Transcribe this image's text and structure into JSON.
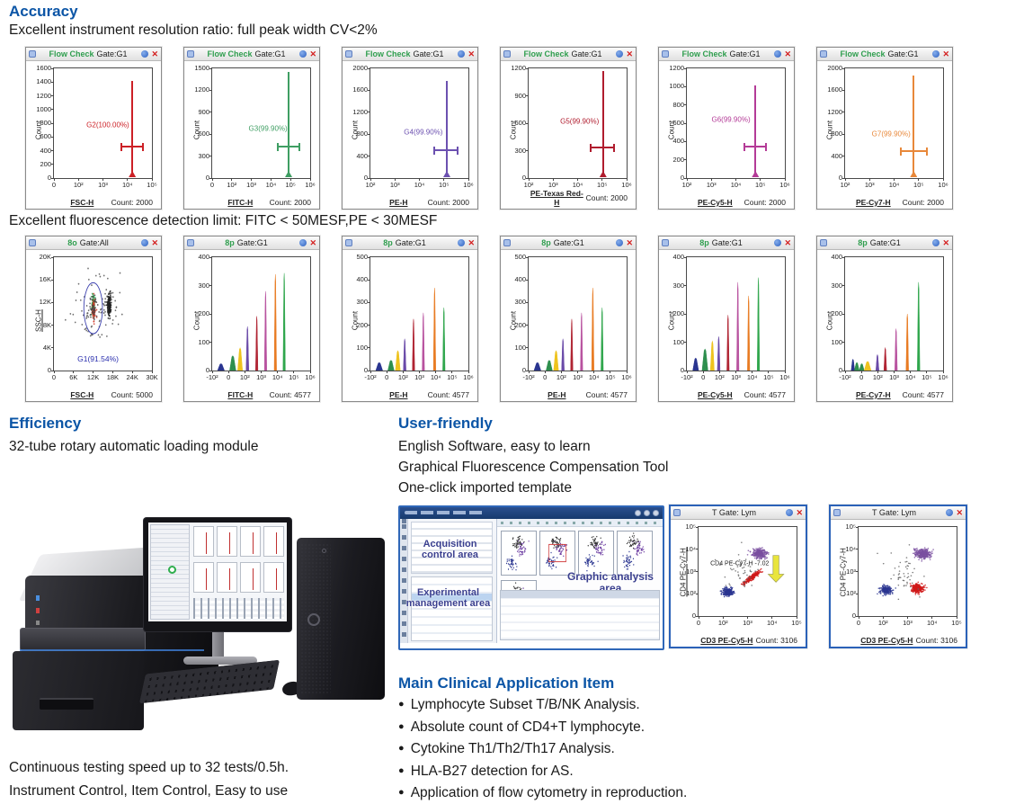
{
  "page": {
    "accuracy_heading": "Accuracy",
    "accuracy_line": "Excellent instrument resolution ratio: full peak width CV<2%",
    "fluorescence_line": "Excellent fluorescence detection limit: FITC < 50MESF,PE < 30MESF",
    "efficiency_heading": "Efficiency",
    "efficiency_line": "32-tube rotary automatic loading module",
    "userfriendly_heading": "User-friendly",
    "userfriendly_lines": [
      "English Software, easy to learn",
      "Graphical Fluorescence Compensation Tool",
      "One-click imported template"
    ],
    "clinical_heading": "Main Clinical Application Item",
    "clinical_items": [
      "Lymphocyte Subset T/B/NK Analysis.",
      "Absolute count of CD4+T lymphocyte.",
      "Cytokine Th1/Th2/Th17 Analysis.",
      "HLA-B27 detection for AS.",
      "Application of flow cytometry in reproduction."
    ],
    "footer_lines": [
      "Continuous testing speed up to 32 tests/0.5h.",
      "Instrument Control, Item Control, Easy to use"
    ]
  },
  "icons": {
    "close": "✕"
  },
  "software": {
    "acquisition_label": "Acquisition control area",
    "graphic_label": "Graphic analysis area",
    "experimental_label": "Experimental management area"
  },
  "chart_data": {
    "row1": [
      {
        "type": "single",
        "title_app": "Flow Check",
        "title_gate": "Gate:G1",
        "ylabel": "Count",
        "xlabel": "FSC-H",
        "count_label": "Count: 2000",
        "yticks": [
          "1600",
          "1400",
          "1200",
          "1000",
          "800",
          "600",
          "400",
          "200",
          "0"
        ],
        "xticks": [
          "0",
          "10²",
          "10³",
          "10⁴",
          "10⁵"
        ],
        "gate_label": "G2(100.00%)",
        "color": "#cc2026",
        "peak": {
          "x": 0.8,
          "h": 0.88
        },
        "whisker": {
          "x1": 0.68,
          "x2": 0.92,
          "y": 0.28
        },
        "label_pos": {
          "x": 0.55,
          "y": 0.48
        }
      },
      {
        "type": "single",
        "title_app": "Flow Check",
        "title_gate": "Gate:G1",
        "ylabel": "Count",
        "xlabel": "FITC-H",
        "count_label": "Count: 2000",
        "yticks": [
          "1500",
          "1200",
          "900",
          "600",
          "300",
          "0"
        ],
        "xticks": [
          "0",
          "10²",
          "10³",
          "10⁴",
          "10⁵",
          "10⁶"
        ],
        "gate_label": "G3(99.90%)",
        "color": "#3f9e63",
        "peak": {
          "x": 0.78,
          "h": 0.96
        },
        "whisker": {
          "x1": 0.66,
          "x2": 0.9,
          "y": 0.28
        },
        "label_pos": {
          "x": 0.57,
          "y": 0.45
        }
      },
      {
        "type": "single",
        "title_app": "Flow Check",
        "title_gate": "Gate:G1",
        "ylabel": "Count",
        "xlabel": "PE-H",
        "count_label": "Count: 2000",
        "yticks": [
          "2000",
          "1600",
          "1200",
          "800",
          "400",
          "0"
        ],
        "xticks": [
          "10²",
          "10³",
          "10⁴",
          "10⁵",
          "10⁶"
        ],
        "gate_label": "G4(99.90%)",
        "color": "#6c51b0",
        "peak": {
          "x": 0.78,
          "h": 0.88
        },
        "whisker": {
          "x1": 0.64,
          "x2": 0.9,
          "y": 0.25
        },
        "label_pos": {
          "x": 0.54,
          "y": 0.42
        }
      },
      {
        "type": "single",
        "title_app": "Flow Check",
        "title_gate": "Gate:G1",
        "ylabel": "Count",
        "xlabel": "PE-Texas Red-H",
        "count_label": "Count: 2000",
        "yticks": [
          "1200",
          "900",
          "600",
          "300",
          "0"
        ],
        "xticks": [
          "10²",
          "10³",
          "10⁴",
          "10⁵",
          "10⁶"
        ],
        "gate_label": "G5(99.90%)",
        "color": "#b01c2e",
        "peak": {
          "x": 0.76,
          "h": 0.97
        },
        "whisker": {
          "x1": 0.62,
          "x2": 0.88,
          "y": 0.27
        },
        "label_pos": {
          "x": 0.52,
          "y": 0.52
        }
      },
      {
        "type": "single",
        "title_app": "Flow Check",
        "title_gate": "Gate:G1",
        "ylabel": "Count",
        "xlabel": "PE-Cy5-H",
        "count_label": "Count: 2000",
        "yticks": [
          "1200",
          "1000",
          "800",
          "600",
          "400",
          "200",
          "0"
        ],
        "xticks": [
          "10²",
          "10³",
          "10⁴",
          "10⁵",
          "10⁶"
        ],
        "gate_label": "G6(99.90%)",
        "color": "#b43b97",
        "peak": {
          "x": 0.7,
          "h": 0.84
        },
        "whisker": {
          "x1": 0.58,
          "x2": 0.82,
          "y": 0.28
        },
        "label_pos": {
          "x": 0.45,
          "y": 0.53
        }
      },
      {
        "type": "single",
        "title_app": "Flow Check",
        "title_gate": "Gate:G1",
        "ylabel": "Count",
        "xlabel": "PE-Cy7-H",
        "count_label": "Count: 2000",
        "yticks": [
          "2000",
          "1600",
          "1200",
          "800",
          "400",
          "0"
        ],
        "xticks": [
          "10²",
          "10³",
          "10⁴",
          "10⁵",
          "10⁶"
        ],
        "gate_label": "G7(99.90%)",
        "color": "#e8883a",
        "peak": {
          "x": 0.7,
          "h": 0.93
        },
        "whisker": {
          "x1": 0.56,
          "x2": 0.84,
          "y": 0.235
        },
        "label_pos": {
          "x": 0.47,
          "y": 0.4
        }
      }
    ],
    "row2_scatter": {
      "type": "scatter",
      "title_app": "8o",
      "title_gate": "Gate:All",
      "ylabel": "SSC-H",
      "ylabel_underline": true,
      "xlabel": "FSC-H",
      "count_label": "Count: 5000",
      "yticks": [
        "20K",
        "16K",
        "12K",
        "8K",
        "4K",
        "0"
      ],
      "xticks": [
        "0",
        "6K",
        "12K",
        "18K",
        "24K",
        "30K"
      ],
      "gate_label": "G1(91.54%)",
      "gate_label_color": "#2a2fae",
      "label_pos": {
        "x": 0.45,
        "y": 0.1
      },
      "ellipse": {
        "cx": 0.4,
        "cy": 0.55,
        "rx": 0.095,
        "ry": 0.225,
        "color": "#3a3fae"
      },
      "clusters": [
        {
          "cx": 0.4,
          "cy": 0.57,
          "rx": 0.015,
          "ry": 0.085,
          "n": 130,
          "color": "#2f9e4e"
        },
        {
          "cx": 0.405,
          "cy": 0.53,
          "rx": 0.018,
          "ry": 0.1,
          "n": 70,
          "color": "#d23a2a"
        },
        {
          "cx": 0.4,
          "cy": 0.55,
          "rx": 0.04,
          "ry": 0.14,
          "n": 40,
          "color": "#444444"
        },
        {
          "cx": 0.565,
          "cy": 0.57,
          "rx": 0.018,
          "ry": 0.105,
          "n": 160,
          "color": "#222222"
        },
        {
          "cx": 0.46,
          "cy": 0.55,
          "rx": 0.22,
          "ry": 0.3,
          "n": 90,
          "color": "#555555"
        }
      ]
    },
    "row2_histograms": [
      {
        "type": "multi",
        "title_app": "8p",
        "title_gate": "Gate:G1",
        "ylabel": "Count",
        "xlabel": "FITC-H",
        "count_label": "Count: 4577",
        "yticks": [
          "400",
          "300",
          "200",
          "100",
          "0"
        ],
        "xticks": [
          "-10²",
          "0",
          "10²",
          "10³",
          "10⁴",
          "10⁵",
          "10⁶"
        ],
        "peaks": [
          {
            "x": 0.09,
            "h": 0.06,
            "w": 0.035,
            "color": "#2a3590"
          },
          {
            "x": 0.21,
            "h": 0.13,
            "w": 0.032,
            "color": "#2e8f4e"
          },
          {
            "x": 0.285,
            "h": 0.2,
            "w": 0.025,
            "color": "#eec31e"
          },
          {
            "x": 0.36,
            "h": 0.39,
            "w": 0.014,
            "color": "#6a4aa8"
          },
          {
            "x": 0.455,
            "h": 0.48,
            "w": 0.012,
            "color": "#b02433"
          },
          {
            "x": 0.545,
            "h": 0.7,
            "w": 0.012,
            "color": "#b8529f"
          },
          {
            "x": 0.645,
            "h": 0.85,
            "w": 0.012,
            "color": "#e87b22"
          },
          {
            "x": 0.735,
            "h": 0.86,
            "w": 0.012,
            "color": "#2fa64c"
          }
        ]
      },
      {
        "type": "multi",
        "title_app": "8p",
        "title_gate": "Gate:G1",
        "ylabel": "Count",
        "xlabel": "PE-H",
        "count_label": "Count: 4577",
        "yticks": [
          "500",
          "400",
          "300",
          "200",
          "100",
          "0"
        ],
        "xticks": [
          "-10²",
          "0",
          "10²",
          "10³",
          "10⁴",
          "10⁵",
          "10⁶"
        ],
        "peaks": [
          {
            "x": 0.09,
            "h": 0.07,
            "w": 0.035,
            "color": "#2a3590"
          },
          {
            "x": 0.21,
            "h": 0.09,
            "w": 0.032,
            "color": "#2e8f4e"
          },
          {
            "x": 0.28,
            "h": 0.175,
            "w": 0.025,
            "color": "#eec31e"
          },
          {
            "x": 0.35,
            "h": 0.28,
            "w": 0.014,
            "color": "#6a4aa8"
          },
          {
            "x": 0.44,
            "h": 0.455,
            "w": 0.012,
            "color": "#b02433"
          },
          {
            "x": 0.54,
            "h": 0.51,
            "w": 0.012,
            "color": "#b8529f"
          },
          {
            "x": 0.655,
            "h": 0.73,
            "w": 0.012,
            "color": "#e87b22"
          },
          {
            "x": 0.75,
            "h": 0.555,
            "w": 0.012,
            "color": "#2fa64c"
          }
        ]
      },
      {
        "type": "multi",
        "title_app": "8p",
        "title_gate": "Gate:G1",
        "ylabel": "Count",
        "xlabel": "PE-H",
        "count_label": "Count: 4577",
        "yticks": [
          "500",
          "400",
          "300",
          "200",
          "100",
          "0"
        ],
        "xticks": [
          "-10²",
          "0",
          "10²",
          "10³",
          "10⁴",
          "10⁵",
          "10⁶"
        ],
        "peaks": [
          {
            "x": 0.09,
            "h": 0.07,
            "w": 0.035,
            "color": "#2a3590"
          },
          {
            "x": 0.21,
            "h": 0.09,
            "w": 0.032,
            "color": "#2e8f4e"
          },
          {
            "x": 0.28,
            "h": 0.175,
            "w": 0.025,
            "color": "#eec31e"
          },
          {
            "x": 0.35,
            "h": 0.28,
            "w": 0.014,
            "color": "#6a4aa8"
          },
          {
            "x": 0.44,
            "h": 0.455,
            "w": 0.012,
            "color": "#b02433"
          },
          {
            "x": 0.54,
            "h": 0.51,
            "w": 0.012,
            "color": "#b8529f"
          },
          {
            "x": 0.655,
            "h": 0.73,
            "w": 0.012,
            "color": "#e87b22"
          },
          {
            "x": 0.75,
            "h": 0.555,
            "w": 0.012,
            "color": "#2fa64c"
          }
        ]
      },
      {
        "type": "multi",
        "title_app": "8p",
        "title_gate": "Gate:G1",
        "ylabel": "Count",
        "xlabel": "PE-Cy5-H",
        "count_label": "Count: 4577",
        "yticks": [
          "400",
          "300",
          "200",
          "100",
          "0"
        ],
        "xticks": [
          "-10²",
          "0",
          "10²",
          "10³",
          "10⁴",
          "10⁵",
          "10⁶"
        ],
        "peaks": [
          {
            "x": 0.09,
            "h": 0.11,
            "w": 0.03,
            "color": "#2a3590"
          },
          {
            "x": 0.185,
            "h": 0.19,
            "w": 0.03,
            "color": "#2e8f4e"
          },
          {
            "x": 0.26,
            "h": 0.26,
            "w": 0.02,
            "color": "#eec31e"
          },
          {
            "x": 0.325,
            "h": 0.3,
            "w": 0.014,
            "color": "#6a4aa8"
          },
          {
            "x": 0.42,
            "h": 0.49,
            "w": 0.012,
            "color": "#b02433"
          },
          {
            "x": 0.52,
            "h": 0.78,
            "w": 0.012,
            "color": "#b8529f"
          },
          {
            "x": 0.63,
            "h": 0.66,
            "w": 0.012,
            "color": "#e87b22"
          },
          {
            "x": 0.73,
            "h": 0.82,
            "w": 0.012,
            "color": "#2fa64c"
          }
        ]
      },
      {
        "type": "multi",
        "title_app": "8p",
        "title_gate": "Gate:G1",
        "ylabel": "Count",
        "xlabel": "PE-Cy7-H",
        "count_label": "Count: 4577",
        "yticks": [
          "400",
          "300",
          "200",
          "100",
          "0"
        ],
        "xticks": [
          "-10²",
          "0",
          "10²",
          "10³",
          "10⁴",
          "10⁵",
          "10⁶"
        ],
        "peaks": [
          {
            "x": 0.08,
            "h": 0.1,
            "w": 0.018,
            "color": "#2a3590"
          },
          {
            "x": 0.12,
            "h": 0.07,
            "w": 0.025,
            "color": "#2e8f4e"
          },
          {
            "x": 0.17,
            "h": 0.06,
            "w": 0.025,
            "color": "#2e8f4e"
          },
          {
            "x": 0.23,
            "h": 0.08,
            "w": 0.035,
            "color": "#eec31e"
          },
          {
            "x": 0.33,
            "h": 0.14,
            "w": 0.016,
            "color": "#6a4aa8"
          },
          {
            "x": 0.41,
            "h": 0.2,
            "w": 0.014,
            "color": "#b02433"
          },
          {
            "x": 0.52,
            "h": 0.37,
            "w": 0.013,
            "color": "#b8529f"
          },
          {
            "x": 0.635,
            "h": 0.5,
            "w": 0.013,
            "color": "#e87b22"
          },
          {
            "x": 0.75,
            "h": 0.78,
            "w": 0.013,
            "color": "#2fa64c"
          }
        ]
      }
    ],
    "tgate": [
      {
        "type": "scatter2",
        "title_gate": "T Gate: Lym",
        "ylabel": "CD4 PE-Cy7-H",
        "ylabel_underline": true,
        "xlabel": "CD3 PE-Cy5-H",
        "count_label": "Count: 3106",
        "yticks": [
          "10⁵",
          "10⁴",
          "10³",
          "10²",
          "0"
        ],
        "xticks": [
          "0",
          "10²",
          "10³",
          "10⁴",
          "10⁵"
        ],
        "anno": {
          "text": "CD4 PE-Cy7-H -7.02",
          "x": 0.42,
          "y": 0.585
        },
        "arrow": {
          "x": 0.79,
          "ytop": 0.68,
          "ybot": 0.38
        },
        "clusters": [
          {
            "cx": 0.3,
            "cy": 0.27,
            "rx": 0.055,
            "ry": 0.045,
            "n": 240,
            "color": "#2a3590"
          },
          {
            "cx": 0.62,
            "cy": 0.7,
            "rx": 0.075,
            "ry": 0.05,
            "n": 280,
            "color": "#7a4fa0"
          },
          {
            "streak": true,
            "x1": 0.44,
            "y1": 0.34,
            "x2": 0.64,
            "y2": 0.52,
            "j": 0.012,
            "n": 220,
            "color": "#d01818"
          },
          {
            "cx": 0.45,
            "cy": 0.5,
            "rx": 0.2,
            "ry": 0.22,
            "n": 50,
            "color": "#666666"
          }
        ]
      },
      {
        "type": "scatter2",
        "title_gate": "T Gate: Lym",
        "ylabel": "CD4 PE-Cy7-H",
        "ylabel_underline": false,
        "xlabel": "CD3 PE-Cy5-H",
        "count_label": "Count: 3106",
        "yticks": [
          "10⁵",
          "10⁴",
          "10³",
          "10²",
          "0"
        ],
        "xticks": [
          "0",
          "10²",
          "10³",
          "10⁴",
          "10⁵"
        ],
        "clusters": [
          {
            "cx": 0.28,
            "cy": 0.29,
            "rx": 0.055,
            "ry": 0.045,
            "n": 240,
            "color": "#2a3590"
          },
          {
            "cx": 0.6,
            "cy": 0.31,
            "rx": 0.062,
            "ry": 0.048,
            "n": 280,
            "color": "#d01818"
          },
          {
            "cx": 0.66,
            "cy": 0.7,
            "rx": 0.075,
            "ry": 0.055,
            "n": 300,
            "color": "#7a4fa0"
          },
          {
            "cx": 0.47,
            "cy": 0.5,
            "rx": 0.22,
            "ry": 0.24,
            "n": 50,
            "color": "#666666"
          }
        ]
      }
    ]
  }
}
